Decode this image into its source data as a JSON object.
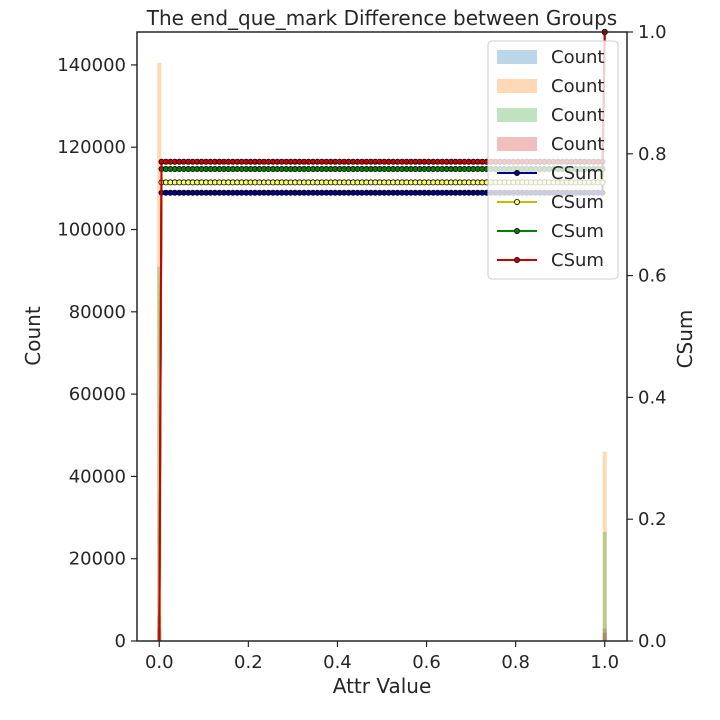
{
  "chart_data": {
    "type": "bar",
    "title": "The end_que_mark Difference between Groups",
    "xlabel": "Attr Value",
    "ylabel": "Count",
    "y2label": "CSum",
    "xlim": [
      -0.05,
      1.05
    ],
    "ylim": [
      0,
      148000
    ],
    "y2lim": [
      0,
      1.0
    ],
    "xticks": [
      "0.0",
      "0.2",
      "0.4",
      "0.6",
      "0.8",
      "1.0"
    ],
    "yticks": [
      "0",
      "20000",
      "40000",
      "60000",
      "80000",
      "100000",
      "120000",
      "140000"
    ],
    "y2ticks": [
      "0.0",
      "0.2",
      "0.4",
      "0.6",
      "0.8",
      "1.0"
    ],
    "legend_position": "top-right",
    "grid": false,
    "histograms": [
      {
        "name": "Count",
        "color": "#1f77b4",
        "bins": [
          {
            "x": 0.0,
            "count": 6000
          },
          {
            "x": 1.0,
            "count": 3000
          }
        ]
      },
      {
        "name": "Count",
        "color": "#ff7f0e",
        "bins": [
          {
            "x": 0.0,
            "count": 140500
          },
          {
            "x": 1.0,
            "count": 46000
          }
        ]
      },
      {
        "name": "Count",
        "color": "#2ca02c",
        "bins": [
          {
            "x": 0.0,
            "count": 91000
          },
          {
            "x": 1.0,
            "count": 26500
          }
        ]
      },
      {
        "name": "Count",
        "color": "#d62728",
        "bins": [
          {
            "x": 0.0,
            "count": 3000
          },
          {
            "x": 1.0,
            "count": 2000
          }
        ]
      }
    ],
    "csum_series": [
      {
        "name": "CSum",
        "color": "#00008b",
        "marker_face": "#00008b",
        "start": [
          0.0,
          0.0
        ],
        "plateau": 0.736,
        "end": [
          1.0,
          1.0
        ]
      },
      {
        "name": "CSum",
        "color": "#bfbf00",
        "marker_face": "#ffff66",
        "start": [
          0.0,
          0.0
        ],
        "plateau": 0.753,
        "end": [
          1.0,
          1.0
        ]
      },
      {
        "name": "CSum",
        "color": "#008000",
        "marker_face": "#008000",
        "start": [
          0.0,
          0.0
        ],
        "plateau": 0.775,
        "end": [
          1.0,
          1.0
        ]
      },
      {
        "name": "CSum",
        "color": "#cc0000",
        "marker_face": "#cc0000",
        "start": [
          0.0,
          0.0
        ],
        "plateau": 0.787,
        "end": [
          1.0,
          1.0
        ]
      }
    ]
  }
}
